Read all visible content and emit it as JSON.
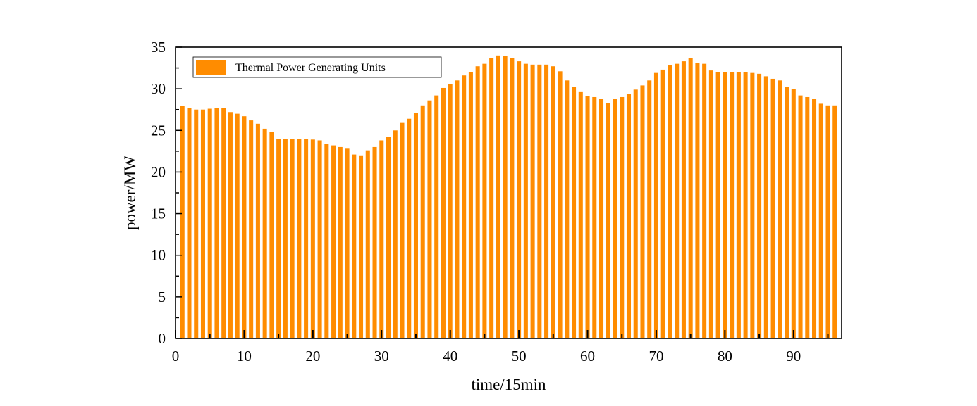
{
  "chart_data": {
    "type": "bar",
    "xlabel": "time/15min",
    "ylabel": "power/MW",
    "xlim": [
      0,
      97
    ],
    "ylim": [
      0,
      35
    ],
    "xticks": [
      0,
      10,
      20,
      30,
      40,
      50,
      60,
      70,
      80,
      90
    ],
    "yticks": [
      0,
      5,
      10,
      15,
      20,
      25,
      30,
      35
    ],
    "grid": false,
    "legend_position": "top-left",
    "series": [
      {
        "name": "Thermal Power Generating Units",
        "color": "#ff8c00",
        "x": [
          1,
          2,
          3,
          4,
          5,
          6,
          7,
          8,
          9,
          10,
          11,
          12,
          13,
          14,
          15,
          16,
          17,
          18,
          19,
          20,
          21,
          22,
          23,
          24,
          25,
          26,
          27,
          28,
          29,
          30,
          31,
          32,
          33,
          34,
          35,
          36,
          37,
          38,
          39,
          40,
          41,
          42,
          43,
          44,
          45,
          46,
          47,
          48,
          49,
          50,
          51,
          52,
          53,
          54,
          55,
          56,
          57,
          58,
          59,
          60,
          61,
          62,
          63,
          64,
          65,
          66,
          67,
          68,
          69,
          70,
          71,
          72,
          73,
          74,
          75,
          76,
          77,
          78,
          79,
          80,
          81,
          82,
          83,
          84,
          85,
          86,
          87,
          88,
          89,
          90,
          91,
          92,
          93,
          94,
          95,
          96
        ],
        "values": [
          27.9,
          27.7,
          27.5,
          27.5,
          27.6,
          27.7,
          27.7,
          27.2,
          27.0,
          26.7,
          26.2,
          25.8,
          25.2,
          24.8,
          24.0,
          24.0,
          24.0,
          24.0,
          24.0,
          23.9,
          23.8,
          23.4,
          23.2,
          23.0,
          22.8,
          22.1,
          22.0,
          22.6,
          23.0,
          23.8,
          24.2,
          25.0,
          25.9,
          26.4,
          27.1,
          28.0,
          28.6,
          29.2,
          30.1,
          30.6,
          31.0,
          31.6,
          32.0,
          32.7,
          33.0,
          33.7,
          34.0,
          33.9,
          33.7,
          33.3,
          33.0,
          32.9,
          32.9,
          32.9,
          32.7,
          32.1,
          31.0,
          30.2,
          29.6,
          29.1,
          29.0,
          28.8,
          28.3,
          28.8,
          29.0,
          29.4,
          29.9,
          30.4,
          31.0,
          31.9,
          32.3,
          32.8,
          33.0,
          33.3,
          33.7,
          33.1,
          33.0,
          32.2,
          32.0,
          32.0,
          32.0,
          32.0,
          32.0,
          31.9,
          31.8,
          31.5,
          31.2,
          31.0,
          30.2,
          30.0,
          29.2,
          29.0,
          28.8,
          28.2,
          28.0,
          28.0
        ]
      }
    ]
  }
}
